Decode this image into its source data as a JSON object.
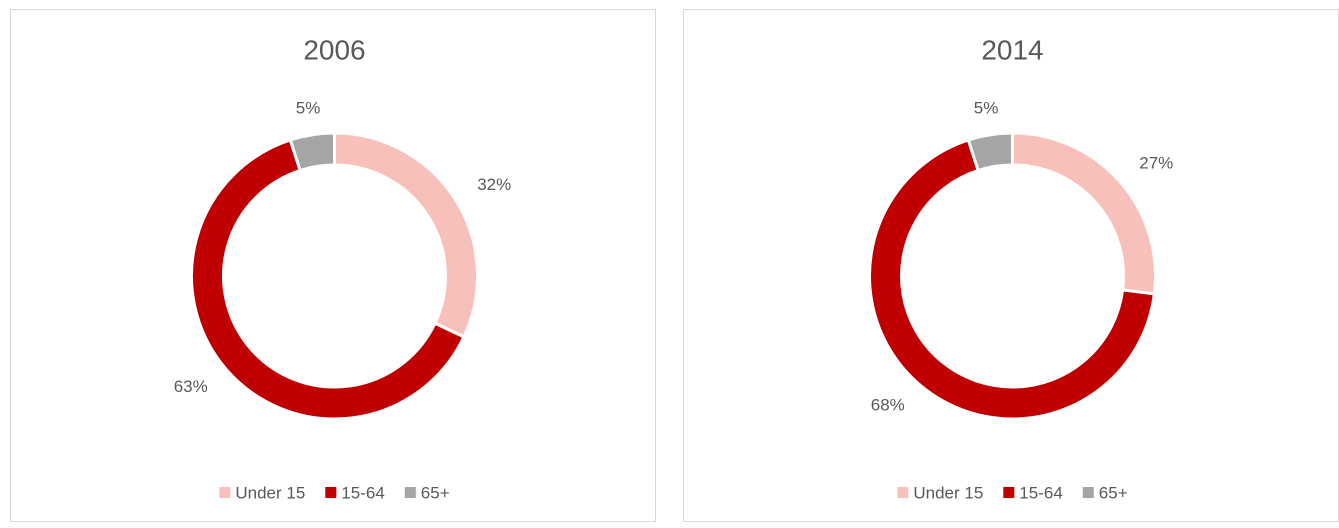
{
  "chart_data": [
    {
      "type": "donut",
      "title": "2006",
      "categories": [
        "Under 15",
        "15-64",
        "65+"
      ],
      "values": [
        32,
        63,
        5
      ],
      "value_labels": [
        "32%",
        "63%",
        "5%"
      ],
      "colors": [
        "#f8c0bb",
        "#c00000",
        "#a5a5a5"
      ],
      "legend": "bottom"
    },
    {
      "type": "donut",
      "title": "2014",
      "categories": [
        "Under 15",
        "15-64",
        "65+"
      ],
      "values": [
        27,
        68,
        5
      ],
      "value_labels": [
        "27%",
        "68%",
        "5%"
      ],
      "colors": [
        "#f8c0bb",
        "#c00000",
        "#a5a5a5"
      ],
      "legend": "bottom"
    }
  ]
}
